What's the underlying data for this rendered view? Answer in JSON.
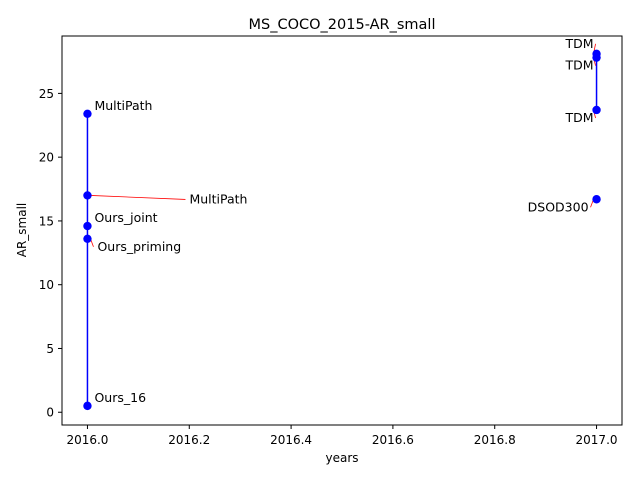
{
  "chart_data": {
    "type": "scatter",
    "title": "MS_COCO_2015-AR_small",
    "xlabel": "years",
    "ylabel": "AR_small",
    "xlim": [
      2015.95,
      2017.05
    ],
    "ylim": [
      -1.0,
      29.5
    ],
    "xticks": [
      2016.0,
      2016.2,
      2016.4,
      2016.6,
      2016.8,
      2017.0
    ],
    "xtick_labels": [
      "2016.0",
      "2016.2",
      "2016.4",
      "2016.6",
      "2016.8",
      "2017.0"
    ],
    "yticks": [
      0,
      5,
      10,
      15,
      20,
      25
    ],
    "ytick_labels": [
      "0",
      "5",
      "10",
      "15",
      "20",
      "25"
    ],
    "grid": false,
    "line_color": "#0000ff",
    "marker_color": "#0000ff",
    "annotation_arrow_color": "#ff0000",
    "lines": [
      {
        "x": [
          2016.0,
          2016.0
        ],
        "y": [
          0.5,
          23.4
        ]
      },
      {
        "x": [
          2017.0,
          2017.0
        ],
        "y": [
          23.7,
          28.1
        ]
      }
    ],
    "points": [
      {
        "x": 2016.0,
        "y": 23.4,
        "label": "MultiPath"
      },
      {
        "x": 2016.0,
        "y": 17.0,
        "label": "MultiPath"
      },
      {
        "x": 2016.0,
        "y": 14.6,
        "label": "Ours_joint"
      },
      {
        "x": 2016.0,
        "y": 13.6,
        "label": "Ours_priming"
      },
      {
        "x": 2016.0,
        "y": 0.5,
        "label": "Ours_16"
      },
      {
        "x": 2017.0,
        "y": 28.1,
        "label": "TDM"
      },
      {
        "x": 2017.0,
        "y": 27.8,
        "label": "TDM"
      },
      {
        "x": 2017.0,
        "y": 23.7,
        "label": "TDM"
      },
      {
        "x": 2017.0,
        "y": 16.7,
        "label": "DSOD300"
      }
    ]
  }
}
